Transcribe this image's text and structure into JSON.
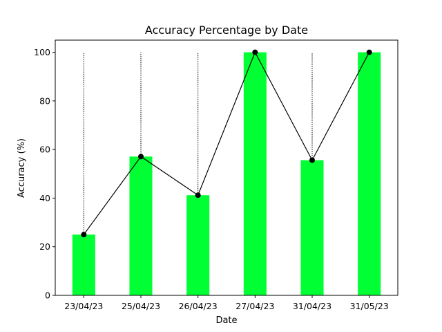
{
  "chart_data": {
    "type": "bar",
    "title": "Accuracy Percentage by Date",
    "xlabel": "Date",
    "ylabel": "Accuracy (%)",
    "categories": [
      "23/04/23",
      "25/04/23",
      "26/04/23",
      "27/04/23",
      "31/04/23",
      "31/05/23"
    ],
    "values": [
      25.0,
      57.1,
      41.2,
      100.0,
      55.6,
      100.0
    ],
    "ylim": [
      0,
      105
    ],
    "yticks": [
      0,
      20,
      40,
      60,
      80,
      100
    ],
    "grid": false,
    "legend": "none",
    "overlay": "line with markers connecting the bar tops; dotted vertical lines from each point up to 100",
    "colors": {
      "bar": "#00ff33",
      "line": "#000000",
      "marker": "#000000",
      "guide": "#000000"
    }
  }
}
